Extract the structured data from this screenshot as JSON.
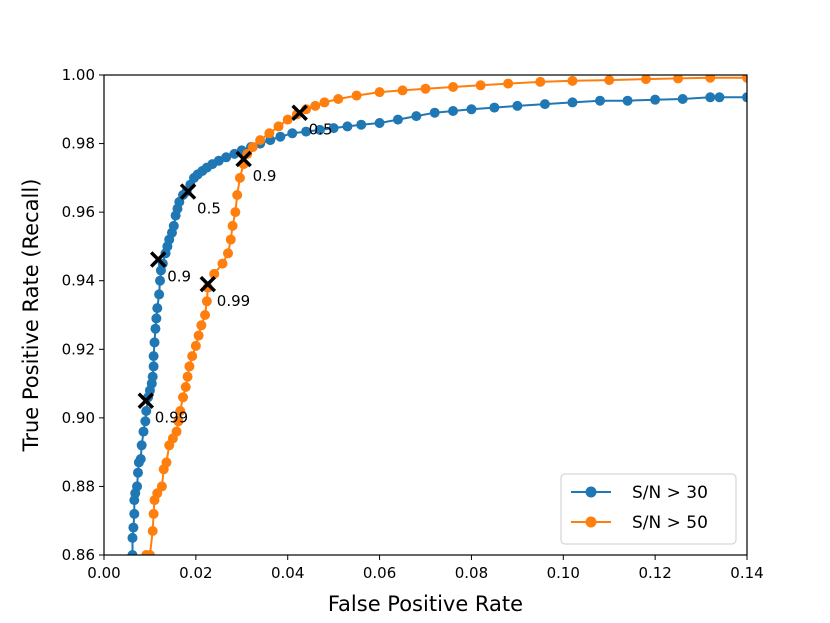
{
  "chart_data": {
    "type": "line",
    "title": "",
    "xlabel": "False Positive Rate",
    "ylabel": "True Positive Rate (Recall)",
    "xlim": [
      0.0,
      0.14
    ],
    "ylim": [
      0.86,
      1.0
    ],
    "xticks": [
      0.0,
      0.02,
      0.04,
      0.06,
      0.08,
      0.1,
      0.12,
      0.14
    ],
    "xtick_labels": [
      "0.00",
      "0.02",
      "0.04",
      "0.06",
      "0.08",
      "0.10",
      "0.12",
      "0.14"
    ],
    "yticks": [
      0.86,
      0.88,
      0.9,
      0.92,
      0.94,
      0.96,
      0.98,
      1.0
    ],
    "ytick_labels": [
      "0.86",
      "0.88",
      "0.90",
      "0.92",
      "0.94",
      "0.96",
      "0.98",
      "1.00"
    ],
    "grid": false,
    "legend_position": "bottom-right",
    "series": [
      {
        "name": "S/N > 30",
        "color": "#1f77b4",
        "points": [
          [
            0.0062,
            0.86
          ],
          [
            0.0062,
            0.865
          ],
          [
            0.0064,
            0.868
          ],
          [
            0.0066,
            0.872
          ],
          [
            0.0066,
            0.876
          ],
          [
            0.0068,
            0.878
          ],
          [
            0.0072,
            0.88
          ],
          [
            0.0074,
            0.884
          ],
          [
            0.0076,
            0.887
          ],
          [
            0.008,
            0.888
          ],
          [
            0.0082,
            0.892
          ],
          [
            0.0086,
            0.896
          ],
          [
            0.009,
            0.899
          ],
          [
            0.0092,
            0.902
          ],
          [
            0.0096,
            0.906
          ],
          [
            0.01,
            0.908
          ],
          [
            0.0104,
            0.91
          ],
          [
            0.0106,
            0.912
          ],
          [
            0.0108,
            0.915
          ],
          [
            0.0108,
            0.918
          ],
          [
            0.011,
            0.922
          ],
          [
            0.0112,
            0.926
          ],
          [
            0.0114,
            0.929
          ],
          [
            0.0116,
            0.932
          ],
          [
            0.012,
            0.936
          ],
          [
            0.0122,
            0.94
          ],
          [
            0.0124,
            0.943
          ],
          [
            0.0128,
            0.945
          ],
          [
            0.0134,
            0.948
          ],
          [
            0.0138,
            0.95
          ],
          [
            0.0142,
            0.952
          ],
          [
            0.0148,
            0.954
          ],
          [
            0.0152,
            0.956
          ],
          [
            0.0156,
            0.959
          ],
          [
            0.016,
            0.961
          ],
          [
            0.0164,
            0.963
          ],
          [
            0.0172,
            0.965
          ],
          [
            0.018,
            0.966
          ],
          [
            0.0188,
            0.968
          ],
          [
            0.0196,
            0.97
          ],
          [
            0.0204,
            0.971
          ],
          [
            0.0214,
            0.972
          ],
          [
            0.0224,
            0.973
          ],
          [
            0.0236,
            0.974
          ],
          [
            0.025,
            0.975
          ],
          [
            0.0266,
            0.976
          ],
          [
            0.0284,
            0.977
          ],
          [
            0.03,
            0.978
          ],
          [
            0.032,
            0.979
          ],
          [
            0.034,
            0.98
          ],
          [
            0.0362,
            0.981
          ],
          [
            0.0384,
            0.982
          ],
          [
            0.041,
            0.983
          ],
          [
            0.044,
            0.9835
          ],
          [
            0.047,
            0.984
          ],
          [
            0.05,
            0.9845
          ],
          [
            0.053,
            0.985
          ],
          [
            0.056,
            0.9855
          ],
          [
            0.06,
            0.986
          ],
          [
            0.064,
            0.987
          ],
          [
            0.068,
            0.988
          ],
          [
            0.072,
            0.989
          ],
          [
            0.076,
            0.9895
          ],
          [
            0.08,
            0.99
          ],
          [
            0.085,
            0.9905
          ],
          [
            0.09,
            0.991
          ],
          [
            0.096,
            0.9915
          ],
          [
            0.102,
            0.992
          ],
          [
            0.108,
            0.9925
          ],
          [
            0.114,
            0.9925
          ],
          [
            0.12,
            0.9928
          ],
          [
            0.126,
            0.993
          ],
          [
            0.132,
            0.9935
          ],
          [
            0.134,
            0.9935
          ],
          [
            0.14,
            0.9935
          ]
        ],
        "marker_labels": [
          {
            "x": 0.0183,
            "y": 0.966,
            "label": "0.5"
          },
          {
            "x": 0.0118,
            "y": 0.9462,
            "label": "0.9"
          },
          {
            "x": 0.0091,
            "y": 0.905,
            "label": "0.99"
          }
        ]
      },
      {
        "name": "S/N > 50",
        "color": "#ff7f0e",
        "points": [
          [
            0.0092,
            0.86
          ],
          [
            0.01,
            0.86
          ],
          [
            0.0106,
            0.867
          ],
          [
            0.0108,
            0.872
          ],
          [
            0.011,
            0.876
          ],
          [
            0.0116,
            0.878
          ],
          [
            0.0126,
            0.88
          ],
          [
            0.013,
            0.885
          ],
          [
            0.0136,
            0.887
          ],
          [
            0.0142,
            0.892
          ],
          [
            0.015,
            0.894
          ],
          [
            0.0158,
            0.896
          ],
          [
            0.0162,
            0.899
          ],
          [
            0.0166,
            0.902
          ],
          [
            0.0172,
            0.906
          ],
          [
            0.0178,
            0.909
          ],
          [
            0.0182,
            0.912
          ],
          [
            0.0186,
            0.915
          ],
          [
            0.0192,
            0.918
          ],
          [
            0.02,
            0.921
          ],
          [
            0.0206,
            0.924
          ],
          [
            0.0212,
            0.927
          ],
          [
            0.022,
            0.93
          ],
          [
            0.0224,
            0.934
          ],
          [
            0.0226,
            0.938
          ],
          [
            0.024,
            0.942
          ],
          [
            0.0258,
            0.945
          ],
          [
            0.027,
            0.948
          ],
          [
            0.0276,
            0.952
          ],
          [
            0.028,
            0.956
          ],
          [
            0.0286,
            0.96
          ],
          [
            0.029,
            0.965
          ],
          [
            0.0296,
            0.97
          ],
          [
            0.0304,
            0.974
          ],
          [
            0.0312,
            0.977
          ],
          [
            0.0324,
            0.979
          ],
          [
            0.034,
            0.981
          ],
          [
            0.036,
            0.983
          ],
          [
            0.038,
            0.985
          ],
          [
            0.04,
            0.987
          ],
          [
            0.042,
            0.9885
          ],
          [
            0.044,
            0.99
          ],
          [
            0.046,
            0.991
          ],
          [
            0.048,
            0.992
          ],
          [
            0.051,
            0.993
          ],
          [
            0.055,
            0.994
          ],
          [
            0.06,
            0.995
          ],
          [
            0.065,
            0.9955
          ],
          [
            0.07,
            0.996
          ],
          [
            0.076,
            0.9965
          ],
          [
            0.082,
            0.997
          ],
          [
            0.088,
            0.9975
          ],
          [
            0.095,
            0.998
          ],
          [
            0.102,
            0.9983
          ],
          [
            0.11,
            0.9985
          ],
          [
            0.118,
            0.9988
          ],
          [
            0.125,
            0.999
          ],
          [
            0.132,
            0.9992
          ],
          [
            0.14,
            0.9992
          ]
        ],
        "marker_labels": [
          {
            "x": 0.0426,
            "y": 0.989,
            "label": "0.5"
          },
          {
            "x": 0.0304,
            "y": 0.9755,
            "label": "0.9"
          },
          {
            "x": 0.0226,
            "y": 0.939,
            "label": "0.99"
          }
        ]
      }
    ]
  }
}
